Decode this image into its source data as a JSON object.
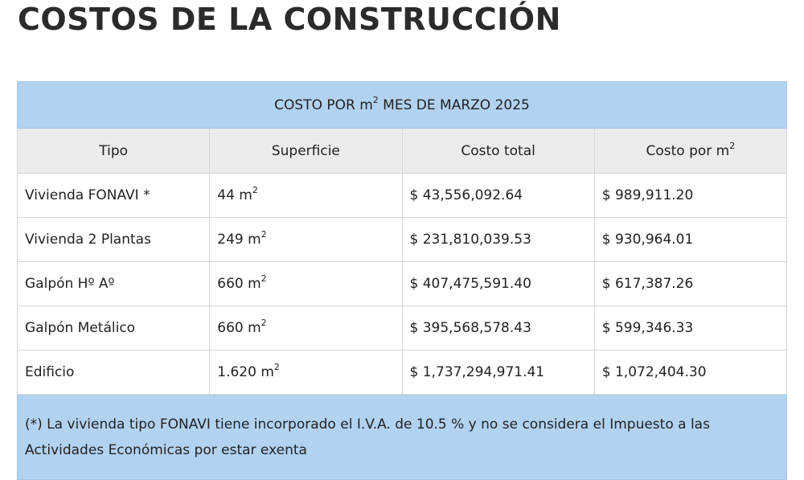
{
  "page": {
    "title": "COSTOS DE LA CONSTRUCCIÓN"
  },
  "table": {
    "caption": {
      "prefix": "COSTO POR m",
      "sup": "2",
      "suffix": " MES DE MARZO 2025"
    },
    "headers": {
      "tipo": "Tipo",
      "superficie": "Superficie",
      "costo_total": "Costo total",
      "costo_m2_prefix": "Costo por m",
      "costo_m2_sup": "2"
    },
    "unit": "m",
    "unit_sup": "2",
    "rows": [
      {
        "tipo": "Vivienda FONAVI *",
        "superficie": "44",
        "costo_total": "$ 43,556,092.64",
        "costo_m2": "$ 989,911.20"
      },
      {
        "tipo": "Vivienda 2 Plantas",
        "superficie": "249",
        "costo_total": "$ 231,810,039.53",
        "costo_m2": "$ 930,964.01"
      },
      {
        "tipo": "Galpón Hº Aº",
        "superficie": "660",
        "costo_total": "$ 407,475,591.40",
        "costo_m2": "$ 617,387.26"
      },
      {
        "tipo": "Galpón Metálico",
        "superficie": "660",
        "costo_total": "$ 395,568,578.43",
        "costo_m2": "$ 599,346.33"
      },
      {
        "tipo": "Edificio",
        "superficie": "1.620",
        "costo_total": "$ 1,737,294,971.41",
        "costo_m2": "$ 1,072,404.30"
      }
    ],
    "footnote": "(*) La vivienda tipo FONAVI tiene incorporado el I.V.A. de 10.5 % y no se considera el Impuesto a las Actividades Económicas por estar exenta"
  }
}
